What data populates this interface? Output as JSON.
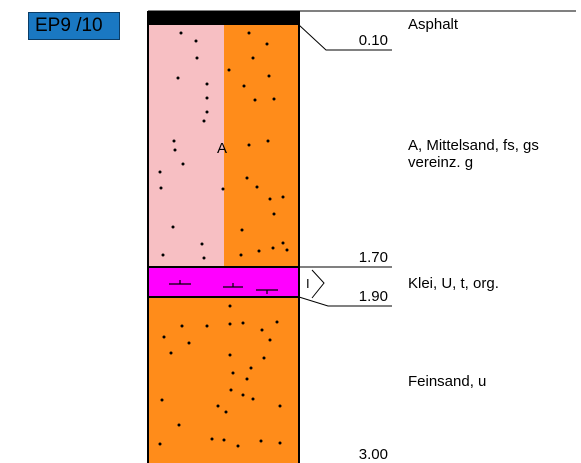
{
  "title_tag": "EP9 /10",
  "colors": {
    "tag_bg": "#1a78c2",
    "asphalt": "#000000",
    "sand_pink": "#f7bfc3",
    "sand_orange": "#ff8c1a",
    "klei": "#ff00ff"
  },
  "depths": {
    "d1": "0.10",
    "d2": "1.70",
    "d3": "1.90",
    "d4": "3.00"
  },
  "layers": {
    "asphalt": "Asphalt",
    "sand_line1": "A, Mittelsand, fs, gs",
    "sand_line2": "vereinz. g",
    "sand_symbol": "A",
    "klei": "Klei, U, t, org.",
    "klei_symbol": "I",
    "feinsand": "Feinsand, u"
  }
}
